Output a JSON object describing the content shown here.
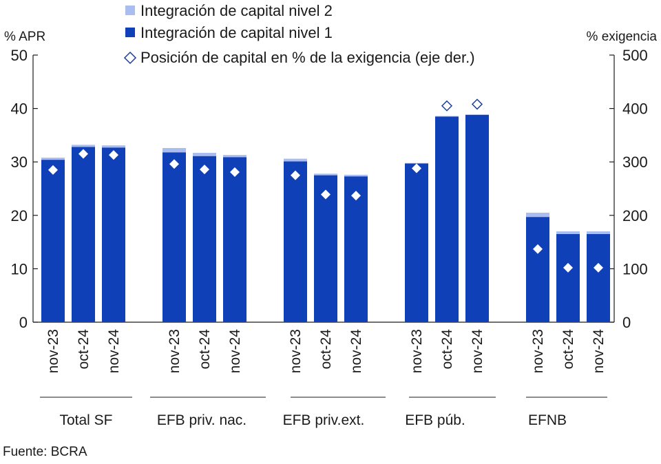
{
  "colors": {
    "tier1": "#1040b8",
    "tier2": "#a9bdf0",
    "marker_outline": "#1a3c9c",
    "axis": "#1a1a1a"
  },
  "source": "Fuente: BCRA",
  "chart_data": {
    "type": "bar",
    "stacked": true,
    "left_axis": {
      "label": "% APR",
      "ylim": [
        0,
        50
      ],
      "ticks": [
        "0",
        "10",
        "20",
        "30",
        "40",
        "50"
      ]
    },
    "right_axis": {
      "label": "% exigencia",
      "ylim": [
        0,
        500
      ],
      "ticks": [
        "0",
        "100",
        "200",
        "300",
        "400",
        "500"
      ]
    },
    "grid": false,
    "legend": {
      "position": "top-center"
    },
    "groups": [
      {
        "label": "Total SF",
        "categories": [
          "nov-23",
          "oct-24",
          "nov-24"
        ]
      },
      {
        "label": "EFB priv. nac.",
        "categories": [
          "nov-23",
          "oct-24",
          "nov-24"
        ]
      },
      {
        "label": "EFB priv.ext.",
        "categories": [
          "nov-23",
          "oct-24",
          "nov-24"
        ]
      },
      {
        "label": "EFB púb.",
        "categories": [
          "nov-23",
          "oct-24",
          "nov-24"
        ]
      },
      {
        "label": "EFNB",
        "categories": [
          "nov-23",
          "oct-24",
          "nov-24"
        ]
      }
    ],
    "series": [
      {
        "name": "Integración de capital nivel 2",
        "kind": "bar",
        "axis": "left",
        "values": [
          [
            0.4,
            0.4,
            0.4
          ],
          [
            0.8,
            0.6,
            0.4
          ],
          [
            0.5,
            0.3,
            0.3
          ],
          [
            0.1,
            0.1,
            0.1
          ],
          [
            0.8,
            0.5,
            0.5
          ]
        ]
      },
      {
        "name": "Integración de capital nivel 1",
        "kind": "bar",
        "axis": "left",
        "values": [
          [
            30.4,
            32.8,
            32.7
          ],
          [
            31.8,
            31.1,
            30.9
          ],
          [
            30.1,
            27.5,
            27.3
          ],
          [
            29.7,
            38.5,
            38.8
          ],
          [
            19.7,
            16.5,
            16.5
          ]
        ]
      },
      {
        "name": "Posición de capital en % de la exigencia (eje der.)",
        "kind": "marker",
        "axis": "right",
        "values": [
          [
            285,
            315,
            313
          ],
          [
            296,
            286,
            281
          ],
          [
            275,
            239,
            237
          ],
          [
            288,
            405,
            408
          ],
          [
            137,
            102,
            102
          ]
        ],
        "hollow": [
          [
            false,
            false,
            false
          ],
          [
            false,
            false,
            false
          ],
          [
            false,
            false,
            false
          ],
          [
            false,
            true,
            true
          ],
          [
            false,
            false,
            false
          ]
        ]
      }
    ]
  }
}
